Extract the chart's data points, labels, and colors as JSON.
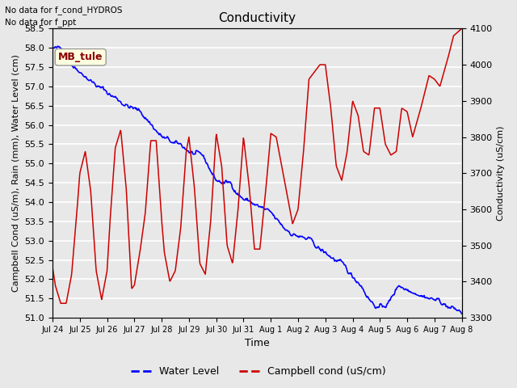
{
  "title": "Conductivity",
  "xlabel": "Time",
  "ylabel_left": "Campbell Cond (uS/m), Rain (mm), Water Level (cm)",
  "ylabel_right": "Conductivity (uS/cm)",
  "top_annotations": [
    "No data for f_cond_HYDROS",
    "No data for f_ppt"
  ],
  "box_label": "MB_tule",
  "legend_entries": [
    "Water Level",
    "Campbell cond (uS/cm)"
  ],
  "water_level_color": "#0000ff",
  "campbell_cond_color": "#cc0000",
  "background_color": "#e8e8e8",
  "plot_bg_color": "#e8e8e8",
  "grid_color": "white",
  "ylim_left": [
    51.0,
    58.5
  ],
  "ylim_right": [
    3300,
    4100
  ],
  "yticks_left": [
    51.0,
    51.5,
    52.0,
    52.5,
    53.0,
    53.5,
    54.0,
    54.5,
    55.0,
    55.5,
    56.0,
    56.5,
    57.0,
    57.5,
    58.0,
    58.5
  ],
  "yticks_right": [
    3300,
    3400,
    3500,
    3600,
    3700,
    3800,
    3900,
    4000,
    4100
  ],
  "xtick_labels": [
    "Jul 24",
    "Jul 25",
    "Jul 26",
    "Jul 27",
    "Jul 28",
    "Jul 29",
    "Jul 30",
    "Jul 31",
    "Aug 1",
    "Aug 2",
    "Aug 3",
    "Aug 4",
    "Aug 5",
    "Aug 6",
    "Aug 7",
    "Aug 8"
  ],
  "n_xticks": 16,
  "figsize": [
    6.4,
    4.8
  ],
  "dpi": 100
}
